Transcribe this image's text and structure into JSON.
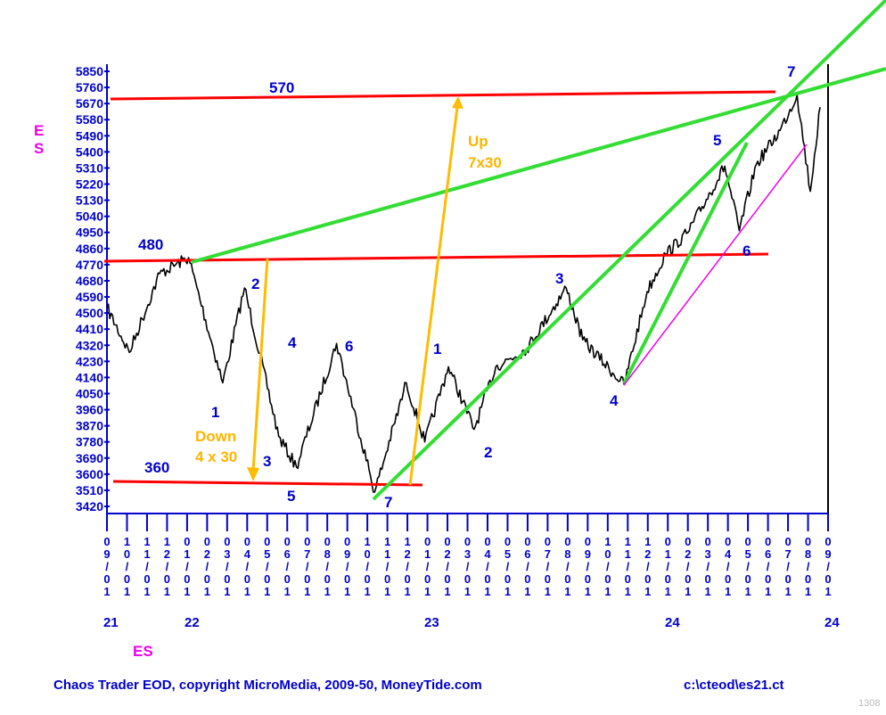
{
  "chart_data": {
    "type": "line",
    "symbol": "ES",
    "y_labels": [
      "5850",
      "5760",
      "5670",
      "5580",
      "5490",
      "5400",
      "5310",
      "5220",
      "5130",
      "5040",
      "4950",
      "4860",
      "4770",
      "4680",
      "4590",
      "4500",
      "4410",
      "4320",
      "4230",
      "4140",
      "4050",
      "3960",
      "3870",
      "3780",
      "3690",
      "3600",
      "3510",
      "3420"
    ],
    "ylim": [
      3420,
      5850
    ],
    "x_ticks": [
      "09/01",
      "10/01",
      "11/01",
      "12/01",
      "01/01",
      "02/01",
      "03/01",
      "04/01",
      "05/01",
      "06/01",
      "07/01",
      "08/01",
      "09/01",
      "10/01",
      "11/01",
      "12/01",
      "01/01",
      "02/01",
      "03/01",
      "04/01",
      "05/01",
      "06/01",
      "07/01",
      "08/01",
      "09/01",
      "10/01",
      "11/01",
      "12/01",
      "01/01",
      "02/01",
      "03/01",
      "04/01",
      "05/01",
      "06/01",
      "07/01",
      "08/01",
      "09/01"
    ],
    "years": [
      "21",
      "22",
      "23",
      "24",
      "24"
    ],
    "series": [
      {
        "x": [
          "2021-09-01",
          "2021-10-05",
          "2021-11-20",
          "2022-01-03",
          "2022-02-24",
          "2022-03-29",
          "2022-05-20",
          "2022-06-16",
          "2022-08-16",
          "2022-10-13",
          "2022-11-30",
          "2022-12-28",
          "2023-02-02",
          "2023-03-13",
          "2023-04-15",
          "2023-06-01",
          "2023-07-31",
          "2023-08-25",
          "2023-10-27",
          "2023-12-01",
          "2023-12-29",
          "2024-02-01",
          "2024-03-28",
          "2024-04-19",
          "2024-05-15",
          "2024-06-20",
          "2024-07-16",
          "2024-08-05",
          "2024-08-20"
        ],
        "values": [
          4530,
          4280,
          4720,
          4810,
          4110,
          4640,
          3810,
          3640,
          4330,
          3500,
          4110,
          3780,
          4200,
          3850,
          4200,
          4300,
          4640,
          4350,
          4100,
          4620,
          4830,
          4950,
          5320,
          4960,
          5330,
          5520,
          5720,
          5180,
          5650
        ]
      }
    ],
    "levels": [
      {
        "label": "570",
        "value": 5700
      },
      {
        "label": "480",
        "value": 4800
      },
      {
        "label": "360",
        "value": 3600
      },
      {
        "label": "6",
        "value": 4840
      }
    ],
    "wave_labels": [
      "1",
      "2",
      "3",
      "4",
      "5",
      "6",
      "7",
      "1",
      "2",
      "3",
      "4",
      "5",
      "6",
      "7"
    ],
    "annotations": [
      {
        "text": "Down",
        "sub": "4 x 30"
      },
      {
        "text": "Up",
        "sub": "7x30"
      }
    ]
  },
  "footer": {
    "left": "Chaos Trader EOD, copyright MicroMedia, 2009-50, MoneyTide.com",
    "right": "c:\\cteod\\es21.ct",
    "page": "1308"
  },
  "colors": {
    "axis": "#0000cc",
    "price": "#000000",
    "level": "#ff0000",
    "trend": "#33dd33",
    "arrow": "#ffbb00",
    "symbol": "#ee00ee",
    "channel": "#ee00ee"
  }
}
